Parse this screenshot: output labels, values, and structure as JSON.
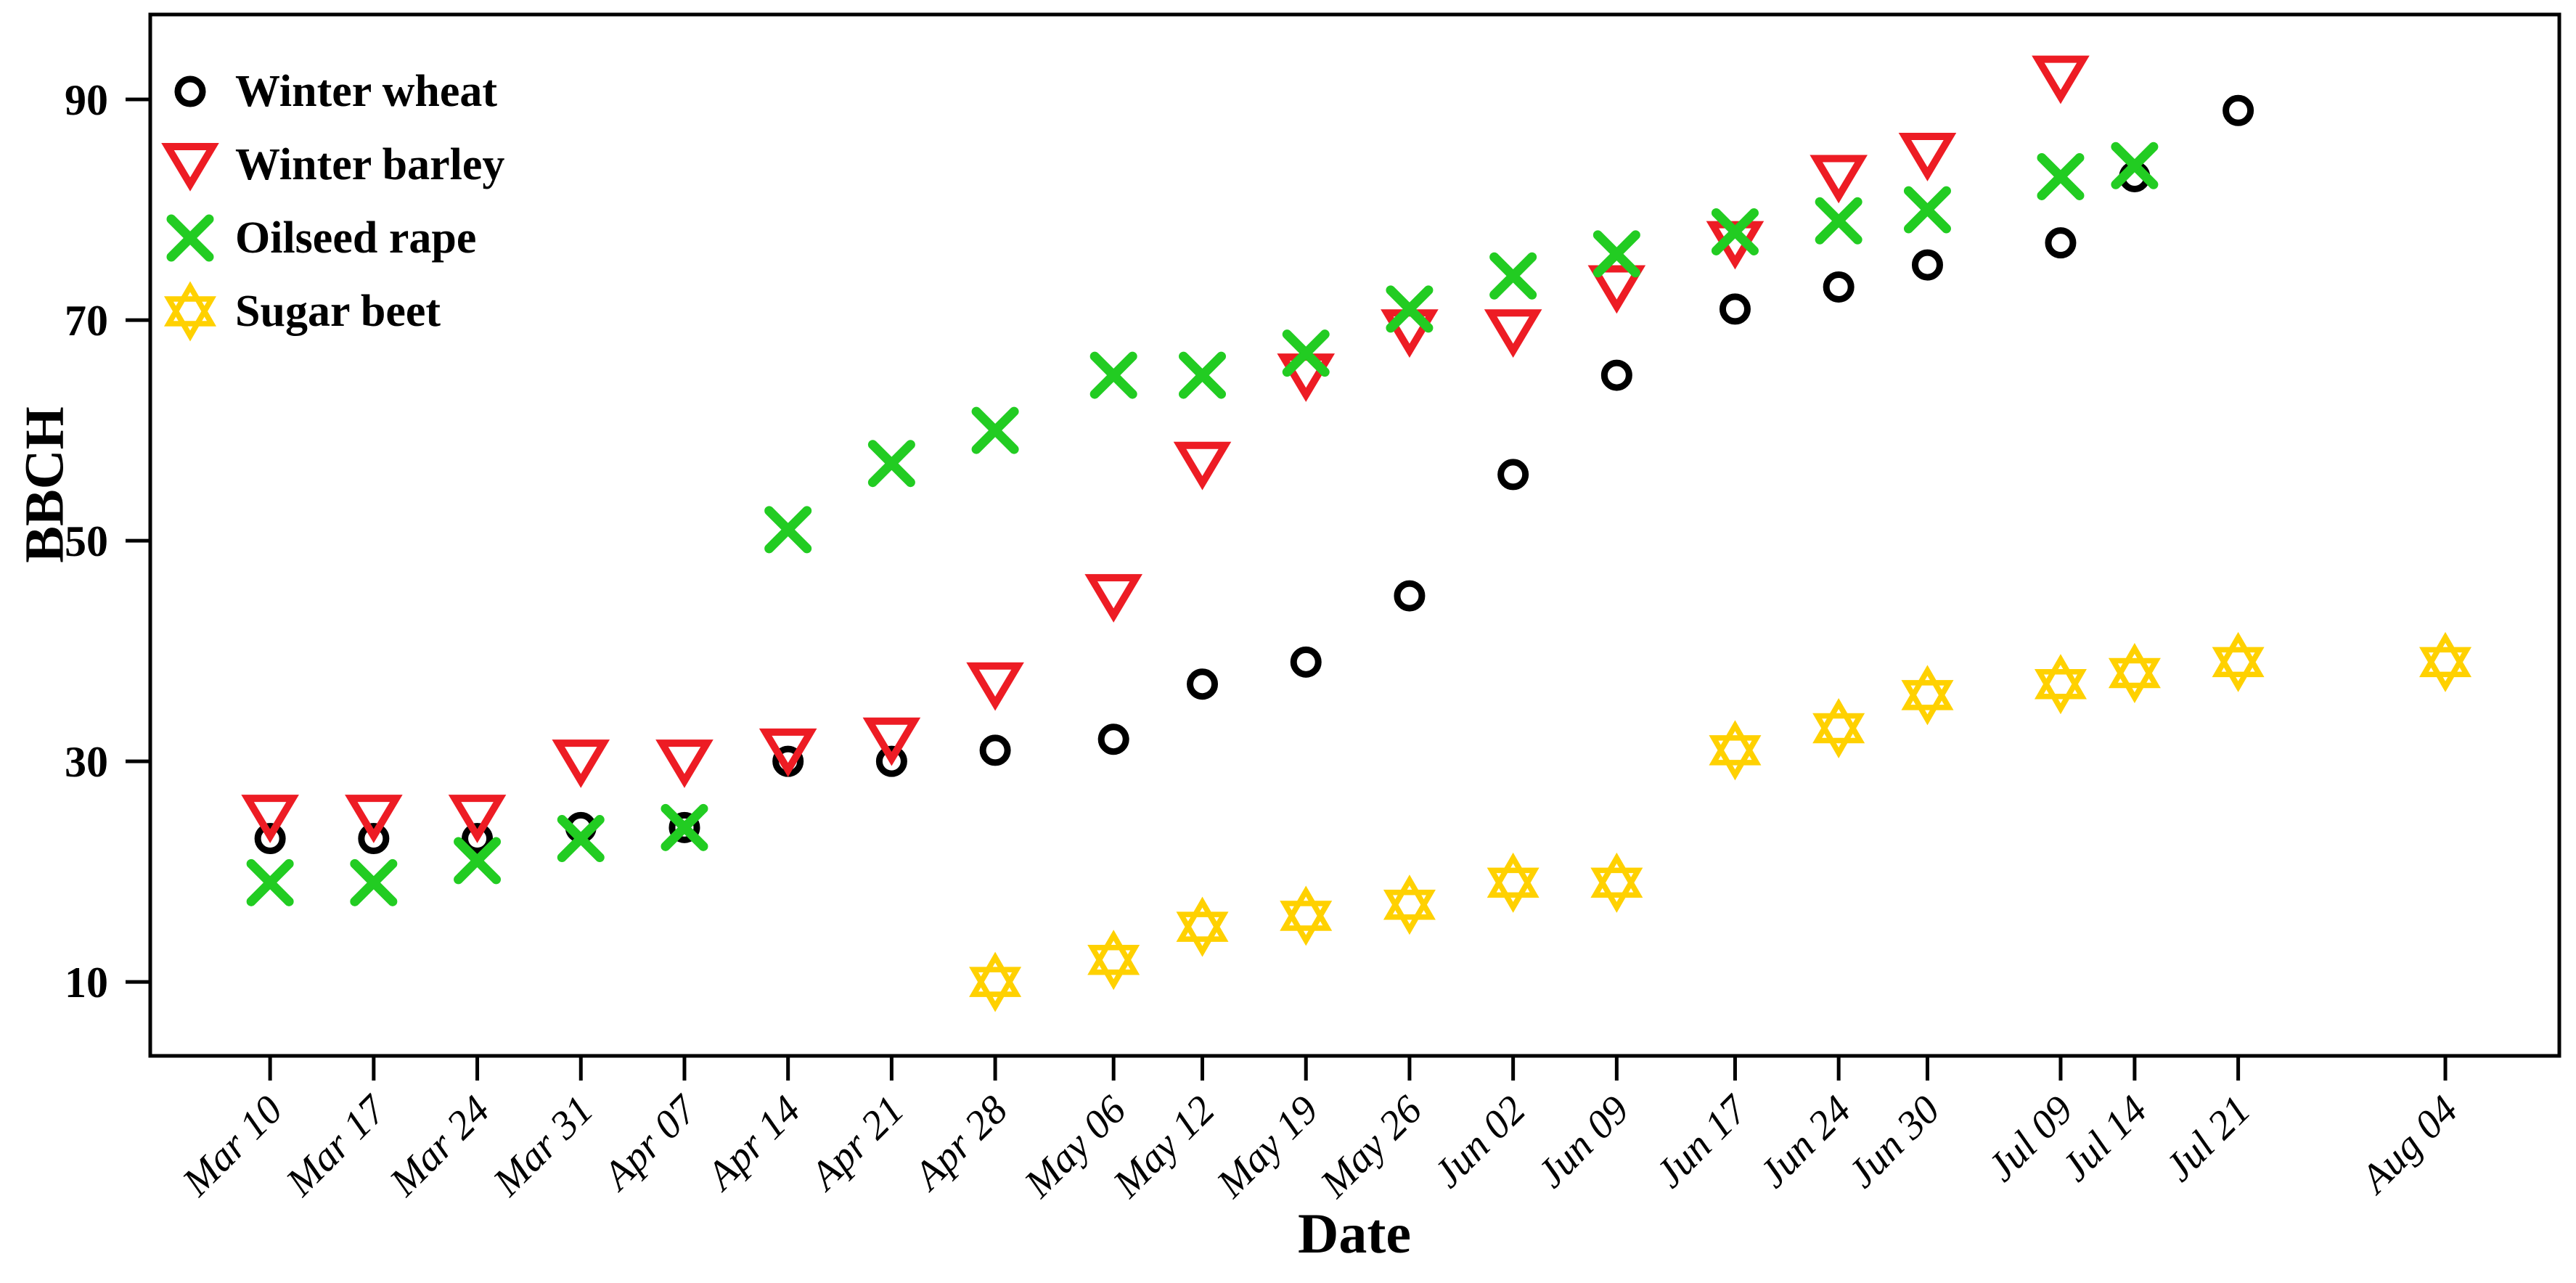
{
  "page": {
    "background": "#ffffff"
  },
  "chart_data": {
    "type": "scatter",
    "title": "",
    "xlabel": "Date",
    "ylabel": "BBCH",
    "categories": [
      "Mar 10",
      "Mar 17",
      "Mar 24",
      "Mar 31",
      "Apr 07",
      "Apr 14",
      "Apr 21",
      "Apr 28",
      "May 06",
      "May 12",
      "May 19",
      "May 26",
      "Jun 02",
      "Jun 09",
      "Jun 17",
      "Jun 24",
      "Jun 30",
      "Jul 09",
      "Jul 14",
      "Jul 21",
      "Aug 04"
    ],
    "category_day_offsets": [
      0,
      7,
      14,
      21,
      28,
      35,
      42,
      49,
      57,
      63,
      70,
      77,
      84,
      91,
      99,
      106,
      112,
      121,
      126,
      133,
      147
    ],
    "yticks": [
      10,
      30,
      50,
      70,
      90
    ],
    "ylim": [
      3.3,
      97.7
    ],
    "xlim_days": [
      -8.1,
      154.7
    ],
    "grid": "off",
    "legend_position": "top-left-inside",
    "series": [
      {
        "name": "Winter wheat",
        "marker": "circle",
        "color": "#000000",
        "values": [
          23,
          23,
          23,
          24,
          24,
          30,
          30,
          31,
          32,
          37,
          39,
          45,
          56,
          65,
          71,
          73,
          75,
          77,
          83,
          89,
          null
        ]
      },
      {
        "name": "Winter barley",
        "marker": "triangle-down",
        "color": "#ED1C24",
        "values": [
          25,
          25,
          25,
          30,
          30,
          31,
          32,
          37,
          45,
          57,
          65,
          69,
          69,
          73,
          77,
          83,
          85,
          92,
          null,
          null,
          null
        ]
      },
      {
        "name": "Oilseed rape",
        "marker": "x",
        "color": "#22CC22",
        "values": [
          19,
          19,
          21,
          23,
          24,
          51,
          57,
          60,
          65,
          65,
          67,
          71,
          74,
          76,
          78,
          79,
          80,
          83,
          84,
          null,
          null
        ]
      },
      {
        "name": "Sugar beet",
        "marker": "hexagram",
        "color": "#FFD100",
        "values": [
          null,
          null,
          null,
          null,
          null,
          null,
          null,
          10,
          12,
          15,
          16,
          17,
          19,
          19,
          31,
          33,
          36,
          37,
          38,
          39,
          39
        ]
      }
    ]
  }
}
